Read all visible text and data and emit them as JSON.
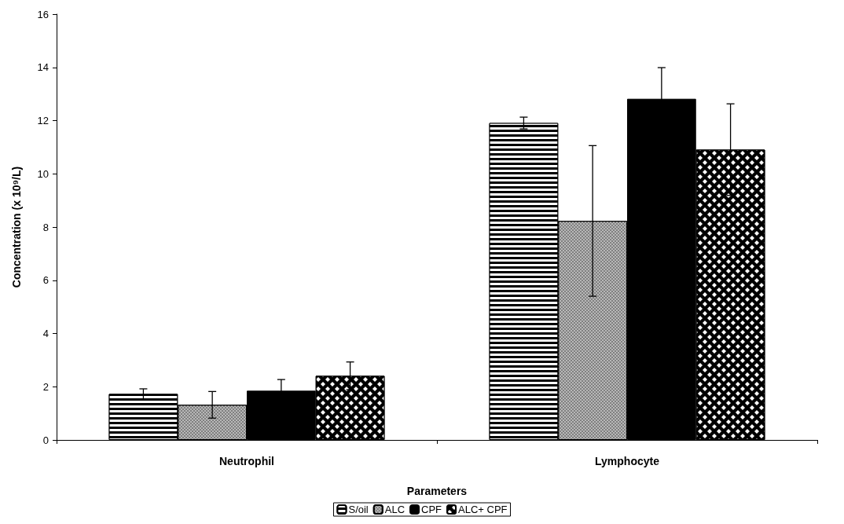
{
  "chart_data": {
    "type": "bar",
    "xlabel": "Parameters",
    "ylabel": "Concentration (x 10⁹/L)",
    "categories": [
      "Neutrophil",
      "Lymphocyte"
    ],
    "series": [
      {
        "name": "S/oil",
        "color": "#000000",
        "values": [
          1.73,
          11.91
        ],
        "errors": [
          0.19,
          0.22
        ]
      },
      {
        "name": "ALC",
        "color": "#808080",
        "values": [
          1.32,
          8.23
        ],
        "errors": [
          0.5,
          2.83
        ]
      },
      {
        "name": "CPF",
        "color": "#000000",
        "values": [
          1.85,
          12.82
        ],
        "errors": [
          0.42,
          1.17
        ]
      },
      {
        "name": "ALC+ CPF",
        "color": "#000000",
        "values": [
          2.41,
          10.91
        ],
        "errors": [
          0.52,
          1.72
        ]
      }
    ],
    "ylim": [
      0,
      16
    ],
    "yticks": [
      0,
      2,
      4,
      6,
      8,
      10,
      12,
      14,
      16
    ],
    "grid": false,
    "legend": "bottom"
  }
}
